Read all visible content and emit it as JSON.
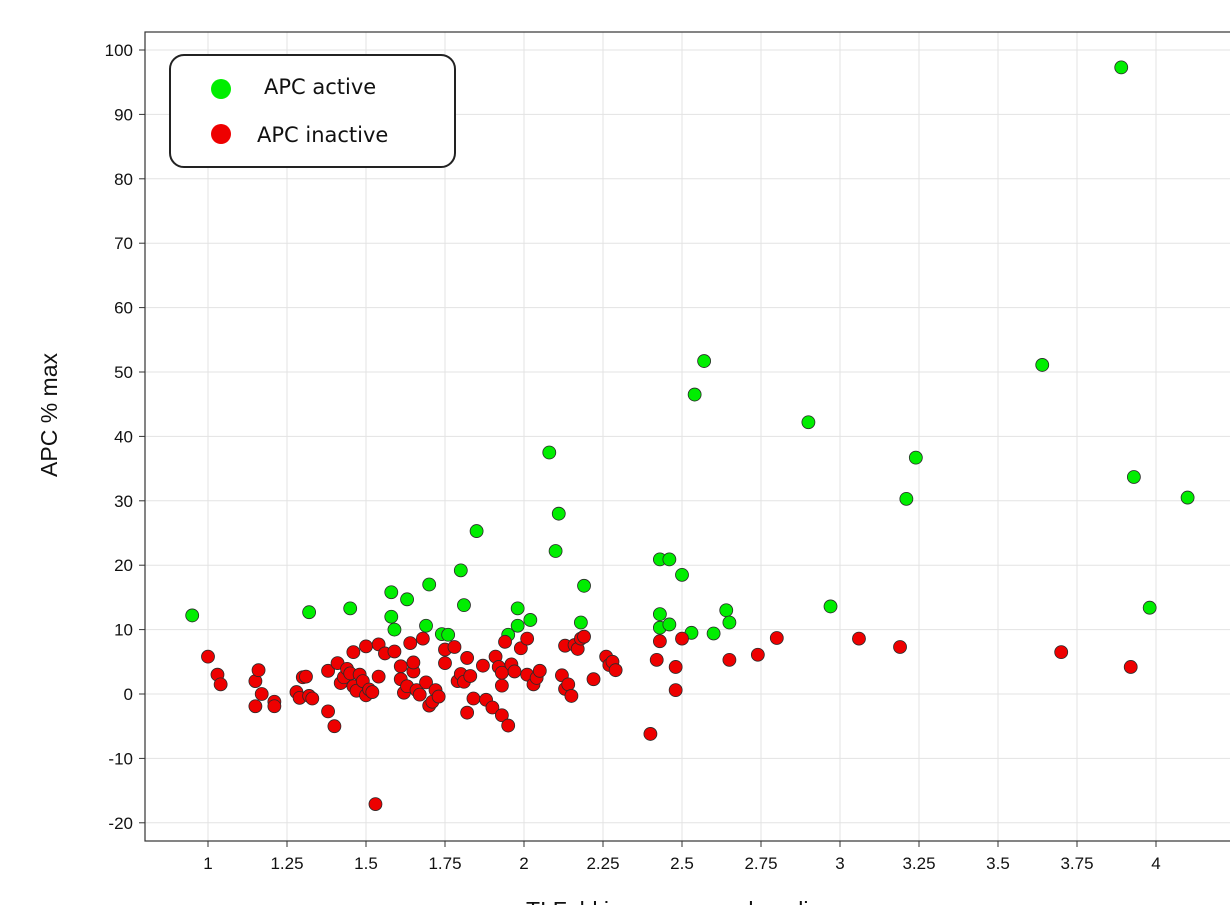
{
  "chart_data": {
    "type": "scatter",
    "title": "",
    "xlabel": "TI Fold increase over baseline",
    "ylabel": "APC % max",
    "xlim": [
      0.8,
      4.2
    ],
    "ylim": [
      -23,
      102
    ],
    "x_ticks": [
      1,
      1.25,
      1.5,
      1.75,
      2,
      2.25,
      2.5,
      2.75,
      3,
      3.25,
      3.5,
      3.75,
      4
    ],
    "x_tick_labels": [
      "1",
      "1.25",
      "1.5",
      "1.75",
      "2",
      "2.25",
      "2.5",
      "2.75",
      "3",
      "3.25",
      "3.5",
      "3.75",
      "4"
    ],
    "y_ticks": [
      -20,
      -10,
      0,
      10,
      20,
      30,
      40,
      50,
      60,
      70,
      80,
      90,
      100
    ],
    "y_tick_labels": [
      "-20",
      "-10",
      "0",
      "10",
      "20",
      "30",
      "40",
      "50",
      "60",
      "70",
      "80",
      "90",
      "100"
    ],
    "grid": true,
    "legend_position": "top-left",
    "series": [
      {
        "name": "APC active",
        "color": "#00ee00",
        "points": [
          [
            0.95,
            12.2
          ],
          [
            1.32,
            12.7
          ],
          [
            1.45,
            13.3
          ],
          [
            1.58,
            12.0
          ],
          [
            1.58,
            15.8
          ],
          [
            1.59,
            10.0
          ],
          [
            1.63,
            14.7
          ],
          [
            1.69,
            10.6
          ],
          [
            1.7,
            17.0
          ],
          [
            1.74,
            9.3
          ],
          [
            1.76,
            9.2
          ],
          [
            1.8,
            19.2
          ],
          [
            1.81,
            13.8
          ],
          [
            1.85,
            25.3
          ],
          [
            1.95,
            9.2
          ],
          [
            1.98,
            13.3
          ],
          [
            1.98,
            10.6
          ],
          [
            2.02,
            11.5
          ],
          [
            2.08,
            37.5
          ],
          [
            2.1,
            22.2
          ],
          [
            2.11,
            28.0
          ],
          [
            2.18,
            11.1
          ],
          [
            2.19,
            16.8
          ],
          [
            2.43,
            10.3
          ],
          [
            2.43,
            12.4
          ],
          [
            2.43,
            20.9
          ],
          [
            2.46,
            10.8
          ],
          [
            2.46,
            20.9
          ],
          [
            2.5,
            18.5
          ],
          [
            2.53,
            9.5
          ],
          [
            2.54,
            46.5
          ],
          [
            2.57,
            51.7
          ],
          [
            2.6,
            9.4
          ],
          [
            2.64,
            13.0
          ],
          [
            2.65,
            11.1
          ],
          [
            2.9,
            42.2
          ],
          [
            2.97,
            13.6
          ],
          [
            3.21,
            30.3
          ],
          [
            3.24,
            36.7
          ],
          [
            3.64,
            51.1
          ],
          [
            3.89,
            97.3
          ],
          [
            3.93,
            33.7
          ],
          [
            3.98,
            13.4
          ],
          [
            4.1,
            30.5
          ]
        ]
      },
      {
        "name": "APC inactive",
        "color": "#ee0000",
        "points": [
          [
            1.0,
            5.8
          ],
          [
            1.03,
            3.0
          ],
          [
            1.04,
            1.5
          ],
          [
            1.15,
            2.0
          ],
          [
            1.15,
            -1.9
          ],
          [
            1.16,
            3.7
          ],
          [
            1.17,
            0.0
          ],
          [
            1.21,
            -1.2
          ],
          [
            1.21,
            -1.9
          ],
          [
            1.28,
            0.3
          ],
          [
            1.29,
            -0.6
          ],
          [
            1.3,
            2.6
          ],
          [
            1.31,
            2.7
          ],
          [
            1.32,
            -0.3
          ],
          [
            1.33,
            -0.7
          ],
          [
            1.38,
            3.6
          ],
          [
            1.38,
            -2.7
          ],
          [
            1.4,
            -5.0
          ],
          [
            1.41,
            4.8
          ],
          [
            1.42,
            1.7
          ],
          [
            1.43,
            2.6
          ],
          [
            1.44,
            3.9
          ],
          [
            1.45,
            3.2
          ],
          [
            1.46,
            1.2
          ],
          [
            1.46,
            6.5
          ],
          [
            1.47,
            0.5
          ],
          [
            1.48,
            3.0
          ],
          [
            1.49,
            2.0
          ],
          [
            1.5,
            -0.2
          ],
          [
            1.5,
            7.4
          ],
          [
            1.51,
            0.7
          ],
          [
            1.52,
            0.3
          ],
          [
            1.53,
            -17.1
          ],
          [
            1.54,
            7.7
          ],
          [
            1.54,
            2.7
          ],
          [
            1.56,
            6.3
          ],
          [
            1.59,
            6.6
          ],
          [
            1.61,
            4.3
          ],
          [
            1.61,
            2.3
          ],
          [
            1.62,
            0.2
          ],
          [
            1.63,
            1.2
          ],
          [
            1.64,
            7.9
          ],
          [
            1.65,
            3.5
          ],
          [
            1.65,
            4.9
          ],
          [
            1.66,
            0.6
          ],
          [
            1.67,
            -0.1
          ],
          [
            1.68,
            8.6
          ],
          [
            1.69,
            1.8
          ],
          [
            1.7,
            -1.8
          ],
          [
            1.71,
            -1.2
          ],
          [
            1.72,
            0.6
          ],
          [
            1.73,
            -0.4
          ],
          [
            1.75,
            4.8
          ],
          [
            1.75,
            6.9
          ],
          [
            1.78,
            7.3
          ],
          [
            1.79,
            2.0
          ],
          [
            1.8,
            3.1
          ],
          [
            1.81,
            1.9
          ],
          [
            1.82,
            -2.9
          ],
          [
            1.82,
            5.6
          ],
          [
            1.83,
            2.8
          ],
          [
            1.84,
            -0.7
          ],
          [
            1.87,
            4.4
          ],
          [
            1.88,
            -0.9
          ],
          [
            1.9,
            -2.1
          ],
          [
            1.91,
            5.8
          ],
          [
            1.92,
            4.2
          ],
          [
            1.93,
            -3.3
          ],
          [
            1.93,
            1.3
          ],
          [
            1.93,
            3.3
          ],
          [
            1.94,
            8.1
          ],
          [
            1.95,
            -4.9
          ],
          [
            1.96,
            4.6
          ],
          [
            1.97,
            3.5
          ],
          [
            1.99,
            7.1
          ],
          [
            2.01,
            3.0
          ],
          [
            2.01,
            8.6
          ],
          [
            2.03,
            1.5
          ],
          [
            2.04,
            2.5
          ],
          [
            2.05,
            3.6
          ],
          [
            2.12,
            2.9
          ],
          [
            2.13,
            7.5
          ],
          [
            2.13,
            0.8
          ],
          [
            2.14,
            1.5
          ],
          [
            2.15,
            -0.3
          ],
          [
            2.16,
            7.6
          ],
          [
            2.17,
            7.0
          ],
          [
            2.18,
            8.6
          ],
          [
            2.19,
            8.9
          ],
          [
            2.22,
            2.3
          ],
          [
            2.26,
            5.8
          ],
          [
            2.27,
            4.5
          ],
          [
            2.28,
            5.0
          ],
          [
            2.29,
            3.7
          ],
          [
            2.4,
            -6.2
          ],
          [
            2.42,
            5.3
          ],
          [
            2.43,
            8.2
          ],
          [
            2.48,
            4.2
          ],
          [
            2.48,
            0.6
          ],
          [
            2.5,
            8.6
          ],
          [
            2.65,
            5.3
          ],
          [
            2.74,
            6.1
          ],
          [
            2.8,
            8.7
          ],
          [
            3.06,
            8.6
          ],
          [
            3.19,
            7.3
          ],
          [
            3.7,
            6.5
          ],
          [
            3.92,
            4.2
          ]
        ]
      }
    ]
  }
}
